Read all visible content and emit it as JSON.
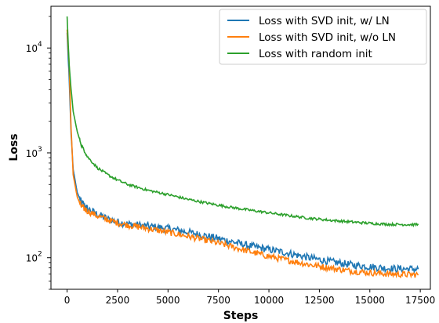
{
  "chart_data": {
    "type": "line",
    "title": "",
    "xlabel": "Steps",
    "ylabel": "Loss",
    "xscale": "linear",
    "yscale": "log",
    "xlim": [
      -800,
      18000
    ],
    "ylim": [
      50,
      25000
    ],
    "x_ticks": [
      0,
      2500,
      5000,
      7500,
      10000,
      12500,
      15000,
      17500
    ],
    "x_tick_labels": [
      "0",
      "2500",
      "5000",
      "7500",
      "10000",
      "12500",
      "15000",
      "17500"
    ],
    "y_ticks": [
      100,
      1000,
      10000
    ],
    "y_tick_labels": [
      "10",
      "10",
      "10"
    ],
    "y_tick_exponents": [
      "2",
      "3",
      "4"
    ],
    "grid": false,
    "legend_position": "top-right",
    "series": [
      {
        "name": "Loss with SVD init, w/ LN",
        "color": "#1f77b4",
        "x": [
          0,
          100,
          200,
          300,
          500,
          700,
          1000,
          1500,
          2000,
          2500,
          3000,
          4000,
          5000,
          6000,
          7000,
          8000,
          9000,
          10000,
          11000,
          12000,
          13000,
          14000,
          15000,
          16000,
          17000,
          17400
        ],
        "y": [
          14000,
          5200,
          1500,
          700,
          420,
          340,
          295,
          260,
          235,
          220,
          210,
          200,
          190,
          175,
          160,
          145,
          130,
          120,
          110,
          100,
          92,
          86,
          82,
          79,
          78,
          78
        ]
      },
      {
        "name": "Loss with SVD init, w/o LN",
        "color": "#ff7f0e",
        "x": [
          0,
          100,
          200,
          300,
          500,
          700,
          1000,
          1500,
          2000,
          2500,
          3000,
          4000,
          5000,
          6000,
          7000,
          8000,
          9000,
          10000,
          11000,
          12000,
          13000,
          14000,
          15000,
          16000,
          17000,
          17400
        ],
        "y": [
          15000,
          7000,
          1700,
          620,
          380,
          310,
          280,
          250,
          230,
          215,
          205,
          190,
          175,
          160,
          145,
          130,
          115,
          103,
          94,
          86,
          80,
          75,
          72,
          70,
          69,
          69
        ]
      },
      {
        "name": "Loss with random init",
        "color": "#2ca02c",
        "x": [
          0,
          100,
          200,
          300,
          500,
          700,
          1000,
          1500,
          2000,
          2500,
          3000,
          4000,
          5000,
          6000,
          7000,
          8000,
          9000,
          10000,
          11000,
          12000,
          13000,
          14000,
          15000,
          16000,
          17000,
          17400
        ],
        "y": [
          20000,
          7000,
          4000,
          2500,
          1600,
          1200,
          920,
          720,
          620,
          550,
          500,
          440,
          400,
          360,
          330,
          305,
          285,
          268,
          252,
          238,
          228,
          220,
          213,
          208,
          207,
          207
        ]
      }
    ]
  }
}
